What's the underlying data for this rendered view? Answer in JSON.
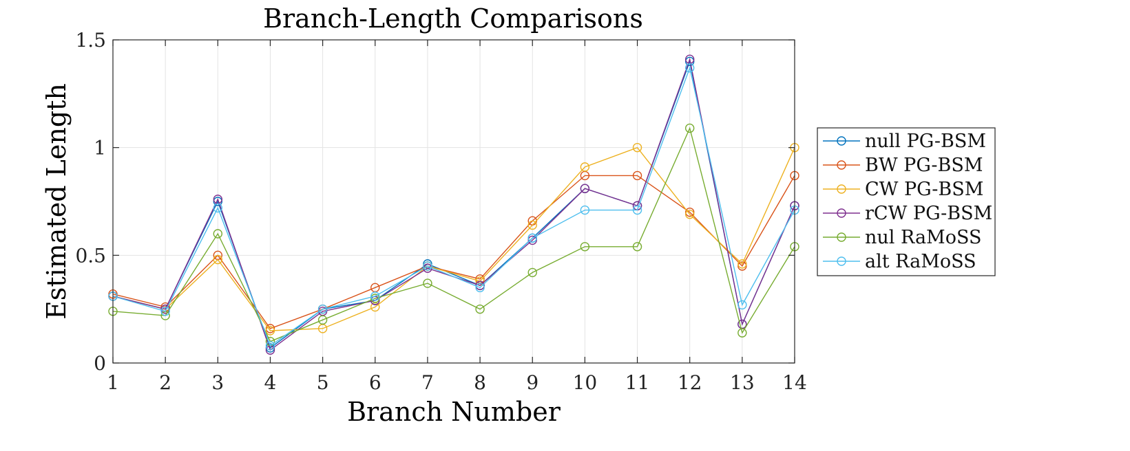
{
  "chart_data": {
    "type": "line",
    "title": "Branch-Length Comparisons",
    "xlabel": "Branch Number",
    "ylabel": "Estimated Length",
    "xlim": [
      1,
      14
    ],
    "ylim": [
      0,
      1.5
    ],
    "x": [
      1,
      2,
      3,
      4,
      5,
      6,
      7,
      8,
      9,
      10,
      11,
      12,
      13,
      14
    ],
    "xticks": [
      "1",
      "2",
      "3",
      "4",
      "5",
      "6",
      "7",
      "8",
      "9",
      "10",
      "11",
      "12",
      "13",
      "14"
    ],
    "yticks": [
      "0",
      "0.5",
      "1",
      "1.5"
    ],
    "ytick_values": [
      0,
      0.5,
      1,
      1.5
    ],
    "grid": true,
    "legend_position": "right",
    "marker": "circle",
    "series": [
      {
        "name": "null PG-BSM",
        "color": "#0072BD",
        "values": [
          0.31,
          0.25,
          0.75,
          0.07,
          0.25,
          0.29,
          0.46,
          0.36,
          0.58,
          0.81,
          0.73,
          1.4,
          0.18,
          0.73
        ]
      },
      {
        "name": "BW PG-BSM",
        "color": "#D95319",
        "values": [
          0.32,
          0.26,
          0.5,
          0.16,
          0.25,
          0.35,
          0.45,
          0.39,
          0.66,
          0.87,
          0.87,
          0.7,
          0.45,
          0.87
        ]
      },
      {
        "name": "CW PG-BSM",
        "color": "#EDB120",
        "values": [
          0.31,
          0.25,
          0.48,
          0.15,
          0.16,
          0.26,
          0.45,
          0.38,
          0.64,
          0.91,
          1.0,
          0.69,
          0.46,
          1.0
        ]
      },
      {
        "name": "rCW PG-BSM",
        "color": "#7E2F8E",
        "values": [
          0.31,
          0.25,
          0.76,
          0.06,
          0.24,
          0.29,
          0.44,
          0.36,
          0.57,
          0.81,
          0.73,
          1.41,
          0.18,
          0.73
        ]
      },
      {
        "name": "nul RaMoSS",
        "color": "#77AC30",
        "values": [
          0.24,
          0.22,
          0.6,
          0.1,
          0.2,
          0.3,
          0.37,
          0.25,
          0.42,
          0.54,
          0.54,
          1.09,
          0.14,
          0.54
        ]
      },
      {
        "name": "alt RaMoSS",
        "color": "#4DBEEE",
        "values": [
          0.31,
          0.24,
          0.72,
          0.08,
          0.25,
          0.31,
          0.45,
          0.35,
          0.58,
          0.71,
          0.71,
          1.37,
          0.27,
          0.71
        ]
      }
    ]
  }
}
